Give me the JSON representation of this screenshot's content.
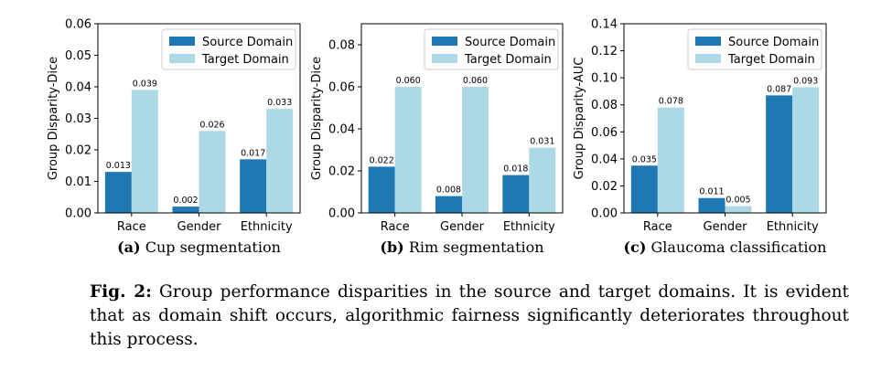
{
  "legend": {
    "source": "Source Domain",
    "target": "Target Domain"
  },
  "colors": {
    "source": "#1f77b4",
    "target": "#add8e6"
  },
  "chart_data": [
    {
      "type": "bar",
      "categories": [
        "Race",
        "Gender",
        "Ethnicity"
      ],
      "series": [
        {
          "name": "Source Domain",
          "values": [
            0.013,
            0.002,
            0.017
          ],
          "labels": [
            "0.013",
            "0.002",
            "0.017"
          ]
        },
        {
          "name": "Target Domain",
          "values": [
            0.039,
            0.026,
            0.033
          ],
          "labels": [
            "0.039",
            "0.026",
            "0.033"
          ]
        }
      ],
      "ylabel": "Group Disparity-Dice",
      "ylim": [
        0,
        0.06
      ],
      "yticks": [
        0,
        0.01,
        0.02,
        0.03,
        0.04,
        0.05,
        0.06
      ],
      "ytick_labels": [
        "0.00",
        "0.01",
        "0.02",
        "0.03",
        "0.04",
        "0.05",
        "0.06"
      ],
      "legend_position": "top-right",
      "subcaption_label": "(a)",
      "subcaption": "Cup segmentation"
    },
    {
      "type": "bar",
      "categories": [
        "Race",
        "Gender",
        "Ethnicity"
      ],
      "series": [
        {
          "name": "Source Domain",
          "values": [
            0.022,
            0.008,
            0.018
          ],
          "labels": [
            "0.022",
            "0.008",
            "0.018"
          ]
        },
        {
          "name": "Target Domain",
          "values": [
            0.06,
            0.06,
            0.031
          ],
          "labels": [
            "0.060",
            "0.060",
            "0.031"
          ]
        }
      ],
      "ylabel": "Group Disparity-Dice",
      "ylim": [
        0,
        0.09
      ],
      "yticks": [
        0,
        0.02,
        0.04,
        0.06,
        0.08
      ],
      "ytick_labels": [
        "0.00",
        "0.02",
        "0.04",
        "0.06",
        "0.08"
      ],
      "legend_position": "top-right",
      "subcaption_label": "(b)",
      "subcaption": "Rim segmentation"
    },
    {
      "type": "bar",
      "categories": [
        "Race",
        "Gender",
        "Ethnicity"
      ],
      "series": [
        {
          "name": "Source Domain",
          "values": [
            0.035,
            0.011,
            0.087
          ],
          "labels": [
            "0.035",
            "0.011",
            "0.087"
          ]
        },
        {
          "name": "Target Domain",
          "values": [
            0.078,
            0.005,
            0.093
          ],
          "labels": [
            "0.078",
            "0.005",
            "0.093"
          ]
        }
      ],
      "ylabel": "Group Disparity-AUC",
      "ylim": [
        0,
        0.14
      ],
      "yticks": [
        0,
        0.02,
        0.04,
        0.06,
        0.08,
        0.1,
        0.12,
        0.14
      ],
      "ytick_labels": [
        "0.00",
        "0.02",
        "0.04",
        "0.06",
        "0.08",
        "0.10",
        "0.12",
        "0.14"
      ],
      "legend_position": "top-right",
      "subcaption_label": "(c)",
      "subcaption": "Glaucoma classification"
    }
  ],
  "caption": {
    "label": "Fig. 2:",
    "text": "Group performance disparities in the source and target domains. It is evident that as domain shift occurs, algorithmic fairness significantly deteriorates throughout this process."
  }
}
